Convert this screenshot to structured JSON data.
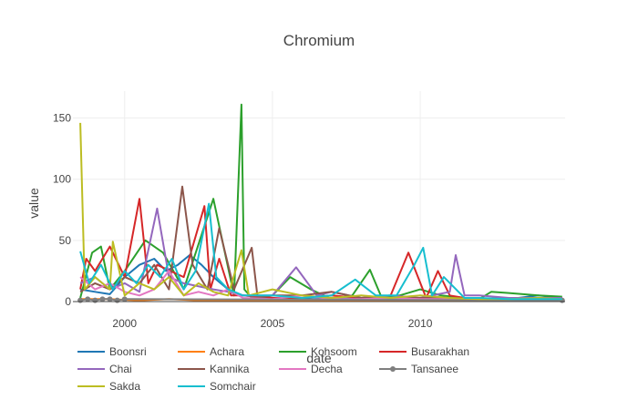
{
  "chart_data": {
    "type": "line",
    "title": "Chromium",
    "xlabel": "date",
    "ylabel": "value",
    "x_ticks": [
      "2000",
      "2005",
      "2010"
    ],
    "y_ticks": [
      0,
      50,
      100,
      150
    ],
    "xlim": [
      1998.25,
      2014.9
    ],
    "ylim": [
      0,
      172
    ],
    "grid": true,
    "legend_position": "bottom",
    "series": [
      {
        "name": "Boonsri",
        "color": "#1f77b4",
        "marker": false,
        "x": [
          1998.5,
          1999.0,
          1999.5,
          2000.0,
          2000.5,
          2001.0,
          2001.4,
          2001.8,
          2002.2,
          2002.6,
          2003.0,
          2003.5,
          2004.0,
          2004.5,
          2005.0,
          2006.0,
          2007.0,
          2008.0,
          2009.0,
          2010.0,
          2011.0,
          2012.0,
          2013.0,
          2014.0,
          2014.8
        ],
        "y": [
          10,
          8,
          6,
          20,
          30,
          35,
          25,
          30,
          38,
          30,
          20,
          10,
          5,
          4,
          3,
          2,
          2,
          3,
          2,
          3,
          2,
          2,
          2,
          5,
          3
        ]
      },
      {
        "name": "Achara",
        "color": "#ff7f0e",
        "marker": false,
        "x": [
          1998.5,
          1999.5,
          2000.5,
          2001.5,
          2002.5,
          2003.5,
          2004.5,
          2005.5,
          2006.5,
          2007.5,
          2008.5,
          2009.5,
          2010.5,
          2011.5,
          2012.5,
          2013.5,
          2014.8
        ],
        "y": [
          2,
          2,
          1,
          2,
          1,
          1,
          1,
          1,
          1,
          1,
          1,
          1,
          1,
          1,
          1,
          1,
          1
        ]
      },
      {
        "name": "Kohsoom",
        "color": "#2ca02c",
        "marker": false,
        "x": [
          1998.5,
          1998.9,
          1999.2,
          1999.5,
          2000.0,
          2000.7,
          2001.3,
          2002.0,
          2003.0,
          2003.7,
          2003.95,
          2004.05,
          2004.3,
          2005.0,
          2005.6,
          2006.3,
          2007.0,
          2007.7,
          2008.3,
          2008.7,
          2009.3,
          2010.0,
          2010.7,
          2011.5,
          2012.0,
          2012.4,
          2013.0,
          2014.0,
          2014.8
        ],
        "y": [
          3,
          40,
          45,
          10,
          25,
          50,
          40,
          10,
          84,
          5,
          161,
          10,
          3,
          5,
          20,
          10,
          2,
          5,
          26,
          3,
          5,
          10,
          5,
          3,
          2,
          8,
          7,
          5,
          4
        ]
      },
      {
        "name": "Busarakhan",
        "color": "#d62728",
        "marker": false,
        "x": [
          1998.5,
          1998.7,
          1999.0,
          1999.5,
          2000.0,
          2000.5,
          2000.8,
          2001.1,
          2002.0,
          2002.7,
          2002.9,
          2003.2,
          2003.6,
          2004.0,
          2005.0,
          2006.0,
          2007.0,
          2008.0,
          2009.0,
          2009.6,
          2010.2,
          2010.6,
          2011.0,
          2011.5,
          2012.0,
          2013.0,
          2014.0,
          2014.8
        ],
        "y": [
          10,
          35,
          25,
          45,
          20,
          84,
          15,
          30,
          20,
          78,
          10,
          35,
          5,
          5,
          3,
          3,
          5,
          3,
          5,
          40,
          3,
          25,
          5,
          3,
          2,
          3,
          3,
          3
        ]
      },
      {
        "name": "Chai",
        "color": "#9467bd",
        "marker": false,
        "x": [
          1998.5,
          1999.0,
          1999.5,
          2000.0,
          2000.5,
          2001.1,
          2001.5,
          2002.0,
          2003.0,
          2003.5,
          2004.0,
          2005.0,
          2005.8,
          2006.5,
          2007.0,
          2008.0,
          2009.0,
          2010.0,
          2011.0,
          2011.2,
          2011.5,
          2012.0,
          2013.0,
          2014.0,
          2014.8
        ],
        "y": [
          15,
          20,
          10,
          15,
          8,
          76,
          20,
          15,
          10,
          8,
          5,
          5,
          28,
          5,
          8,
          3,
          5,
          3,
          8,
          38,
          5,
          5,
          3,
          3,
          3
        ]
      },
      {
        "name": "Kannika",
        "color": "#8c564b",
        "marker": false,
        "x": [
          1998.5,
          1999.0,
          1999.5,
          2000.0,
          2000.5,
          2001.0,
          2001.5,
          2001.95,
          2002.3,
          2002.8,
          2003.2,
          2003.7,
          2004.3,
          2004.5,
          2005.0,
          2006.0,
          2007.0,
          2008.0,
          2009.0,
          2010.0,
          2011.0,
          2012.0,
          2013.0,
          2014.0,
          2014.8
        ],
        "y": [
          8,
          15,
          10,
          20,
          15,
          30,
          10,
          94,
          30,
          10,
          60,
          10,
          44,
          3,
          5,
          5,
          8,
          3,
          3,
          3,
          3,
          2,
          2,
          2,
          2
        ]
      },
      {
        "name": "Decha",
        "color": "#e377c2",
        "marker": false,
        "x": [
          1998.5,
          1999.0,
          1999.5,
          2000.0,
          2000.5,
          2001.0,
          2001.5,
          2002.0,
          2002.5,
          2003.0,
          2003.5,
          2004.0,
          2005.0,
          2006.0,
          2007.0,
          2008.0,
          2009.0,
          2010.0,
          2011.0,
          2012.0,
          2013.0,
          2014.0,
          2014.8
        ],
        "y": [
          20,
          10,
          15,
          8,
          5,
          10,
          25,
          5,
          8,
          5,
          10,
          3,
          2,
          5,
          2,
          2,
          3,
          2,
          2,
          2,
          2,
          2,
          2
        ]
      },
      {
        "name": "Tansanee",
        "color": "#7f7f7f",
        "marker": true,
        "x": [
          1998.5,
          1998.75,
          1999.0,
          1999.25,
          1999.5,
          1999.75,
          2000.0,
          2014.8
        ],
        "y": [
          1,
          2,
          1,
          2,
          2,
          1,
          2,
          1
        ]
      },
      {
        "name": "Sakda",
        "color": "#bcbd22",
        "marker": false,
        "x": [
          1998.5,
          1998.65,
          1999.0,
          1999.5,
          1999.6,
          2000.0,
          2000.5,
          2001.0,
          2001.5,
          2002.0,
          2002.5,
          2003.0,
          2003.5,
          2003.95,
          2004.2,
          2005.0,
          2006.0,
          2007.0,
          2008.0,
          2009.0,
          2010.0,
          2011.0,
          2012.0,
          2013.0,
          2014.0,
          2014.8
        ],
        "y": [
          146,
          10,
          20,
          10,
          49,
          5,
          15,
          10,
          20,
          5,
          15,
          8,
          5,
          42,
          5,
          10,
          5,
          3,
          5,
          3,
          5,
          3,
          2,
          2,
          3,
          2
        ]
      },
      {
        "name": "Somchair",
        "color": "#17becf",
        "marker": false,
        "x": [
          1998.5,
          1998.8,
          1999.2,
          1999.6,
          2000.0,
          2000.4,
          2000.8,
          2001.2,
          2001.6,
          2002.0,
          2002.4,
          2002.85,
          2003.1,
          2003.5,
          2004.0,
          2005.0,
          2006.0,
          2007.0,
          2007.8,
          2008.5,
          2009.2,
          2009.8,
          2010.1,
          2010.4,
          2010.8,
          2011.5,
          2012.0,
          2013.0,
          2014.0,
          2014.8
        ],
        "y": [
          41,
          15,
          30,
          10,
          25,
          15,
          30,
          20,
          35,
          10,
          25,
          80,
          20,
          10,
          5,
          5,
          3,
          5,
          18,
          5,
          5,
          30,
          44,
          5,
          20,
          3,
          3,
          2,
          2,
          2
        ]
      }
    ]
  }
}
